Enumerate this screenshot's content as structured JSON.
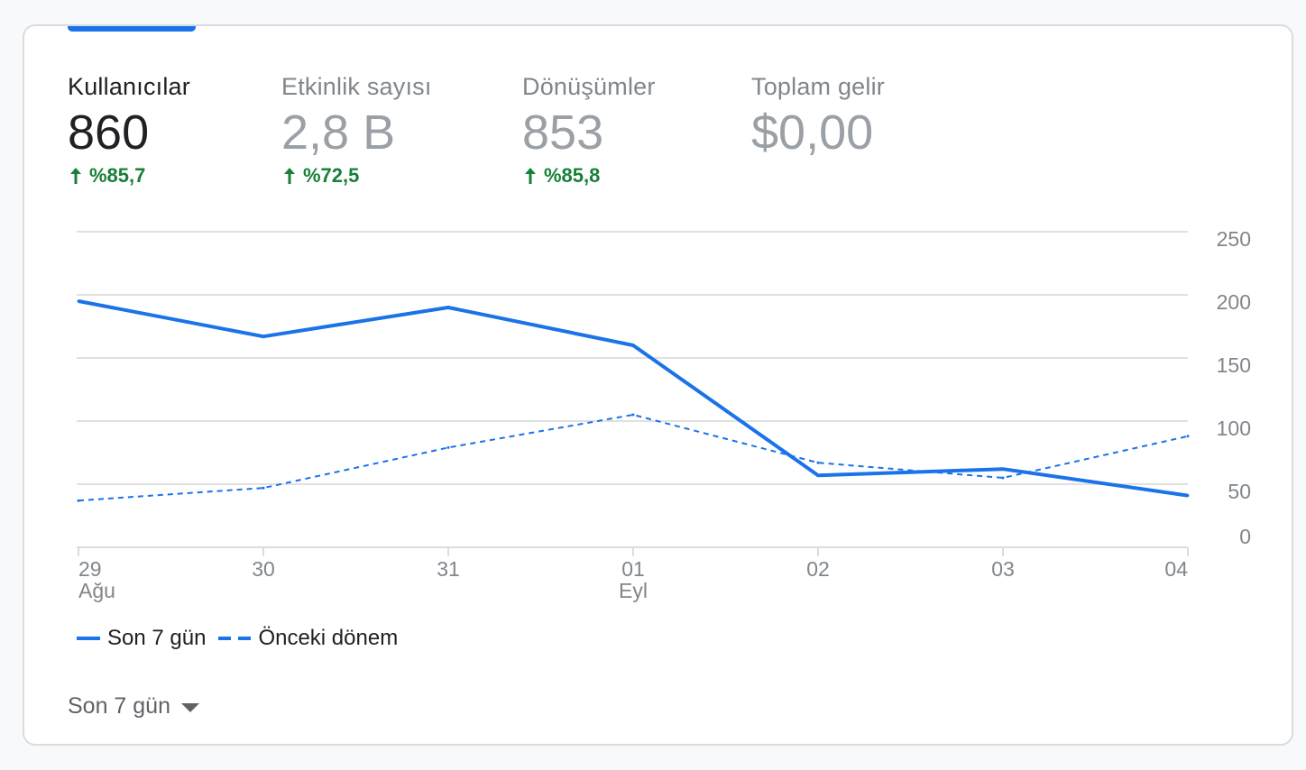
{
  "metrics": [
    {
      "label": "Kullanıcılar",
      "value": "860",
      "change": "%85,7",
      "active": true
    },
    {
      "label": "Etkinlik sayısı",
      "value": "2,8 B",
      "change": "%72,5",
      "active": false
    },
    {
      "label": "Dönüşümler",
      "value": "853",
      "change": "%85,8",
      "active": false
    },
    {
      "label": "Toplam gelir",
      "value": "$0,00",
      "change": "",
      "active": false
    }
  ],
  "chart_data": {
    "type": "line",
    "title": "",
    "xlabel": "",
    "ylabel": "",
    "categories": [
      "29",
      "30",
      "31",
      "01",
      "02",
      "03",
      "04"
    ],
    "category_sublabels": [
      "Ağu",
      "",
      "",
      "Eyl",
      "",
      "",
      ""
    ],
    "ylim": [
      0,
      250
    ],
    "yticks": [
      0,
      50,
      100,
      150,
      200,
      250
    ],
    "y_axis_position": "right",
    "grid": true,
    "legend_position": "bottom-left",
    "series": [
      {
        "name": "Son 7 gün",
        "style": "solid",
        "color": "#1a73e8",
        "values": [
          195,
          167,
          190,
          160,
          57,
          62,
          41
        ]
      },
      {
        "name": "Önceki dönem",
        "style": "dashed",
        "color": "#1a73e8",
        "values": [
          37,
          47,
          79,
          105,
          67,
          55,
          88
        ]
      }
    ]
  },
  "legend": {
    "current": "Son 7 gün",
    "previous": "Önceki dönem"
  },
  "range_select": {
    "label": "Son 7 gün"
  },
  "colors": {
    "accent": "#1a73e8",
    "positive": "#188038",
    "grid": "#e0e0e0",
    "axis_text": "#80868b"
  }
}
